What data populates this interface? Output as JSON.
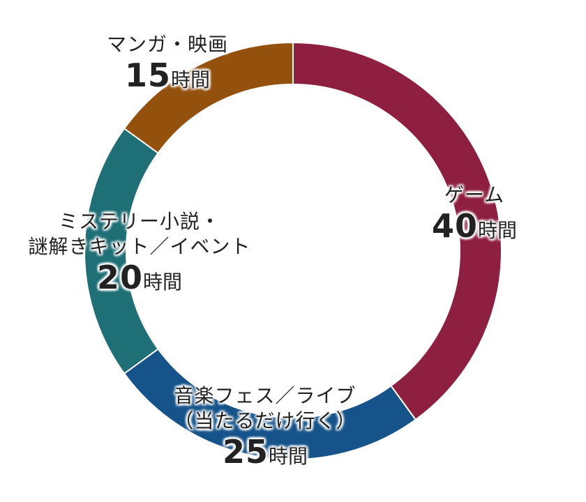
{
  "chart_data": {
    "type": "pie",
    "variant": "donut",
    "title": "",
    "unit": "時間",
    "categories": [
      "ゲーム",
      "音楽フェス／ライブ（当たるだけ行く）",
      "ミステリー小説・謎解きキット／イベント",
      "マンガ・映画"
    ],
    "values": [
      40,
      25,
      20,
      15
    ],
    "colors": [
      "#8e1f41",
      "#15538a",
      "#1e6f76",
      "#94500d"
    ],
    "start_angle_deg": 0,
    "direction": "clockwise",
    "legend": "none (inline labels)"
  },
  "labels": [
    {
      "name_lines": [
        "ゲーム"
      ],
      "value": "40",
      "unit": "時間"
    },
    {
      "name_lines": [
        "音楽フェス／ライブ",
        "（当たるだけ行く）"
      ],
      "value": "25",
      "unit": "時間"
    },
    {
      "name_lines": [
        "ミステリー小説・",
        "謎解きキット／イベント"
      ],
      "value": "20",
      "unit": "時間"
    },
    {
      "name_lines": [
        "マンガ・映画"
      ],
      "value": "15",
      "unit": "時間"
    }
  ]
}
